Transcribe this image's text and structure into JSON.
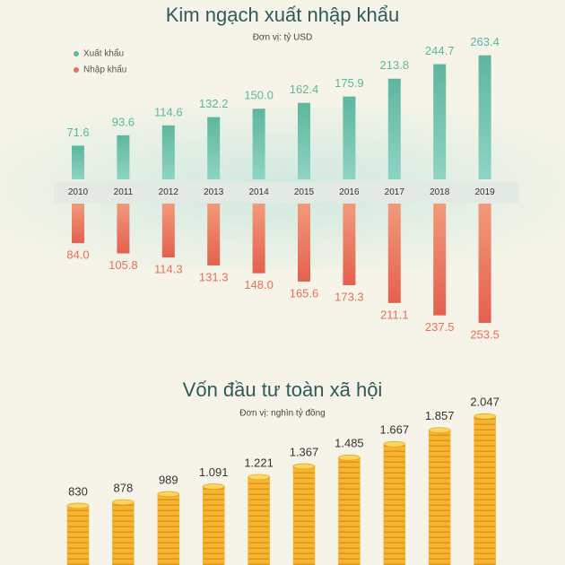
{
  "chart_data": [
    {
      "type": "diverging-bar",
      "title": "Kim ngạch xuất nhập khẩu",
      "subtitle": "Đơn vị: tỷ USD",
      "categories": [
        "2010",
        "2011",
        "2012",
        "2013",
        "2014",
        "2015",
        "2016",
        "2017",
        "2018",
        "2019"
      ],
      "legend": "top-left",
      "series": [
        {
          "name": "Xuất khẩu",
          "color": "#5db79e",
          "values": [
            71.6,
            93.6,
            114.6,
            132.2,
            150.0,
            162.4,
            175.9,
            213.8,
            244.7,
            263.4
          ],
          "value_labels": [
            "71.6",
            "93.6",
            "114.6",
            "132.2",
            "150.0",
            "162.4",
            "175.9",
            "213.8",
            "244.7",
            "263.4"
          ]
        },
        {
          "name": "Nhập khẩu",
          "color": "#e8705a",
          "values": [
            84.0,
            105.8,
            114.3,
            131.3,
            148.0,
            165.6,
            173.3,
            211.1,
            237.5,
            253.5
          ],
          "value_labels": [
            "84.0",
            "105.8",
            "114.3",
            "131.3",
            "148.0",
            "165.6",
            "173.3",
            "211.1",
            "237.5",
            "253.5"
          ]
        }
      ]
    },
    {
      "type": "coin-stack",
      "title": "Vốn đầu tư toàn xã hội",
      "subtitle": "Đơn vị: nghìn tỷ đồng",
      "color": "#f4b02c",
      "values": [
        830,
        878,
        989,
        1091,
        1221,
        1367,
        1485,
        1667,
        1857,
        2047
      ],
      "value_labels": [
        "830",
        "878",
        "989",
        "1.091",
        "1.221",
        "1.367",
        "1.485",
        "1.667",
        "1.857",
        "2.047"
      ]
    }
  ]
}
